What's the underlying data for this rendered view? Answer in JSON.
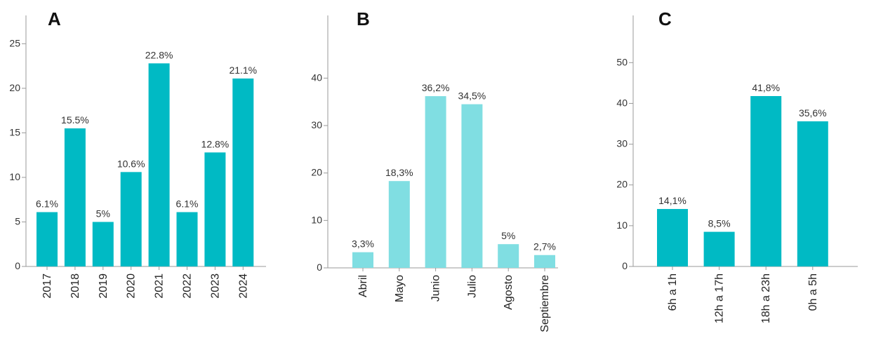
{
  "chart_data": [
    {
      "type": "bar",
      "panel": "A",
      "categories": [
        "2017",
        "2018",
        "2019",
        "2020",
        "2021",
        "2022",
        "2023",
        "2024"
      ],
      "values": [
        6.1,
        15.5,
        5,
        10.6,
        22.8,
        6.1,
        12.8,
        21.1
      ],
      "value_labels": [
        "6.1%",
        "15.5%",
        "5%",
        "10.6%",
        "22.8%",
        "6.1%",
        "12.8%",
        "21.1%"
      ],
      "yticks": [
        0,
        5,
        10,
        15,
        20,
        25
      ],
      "ylim": [
        0,
        27
      ],
      "color": "#00BAC4",
      "grid": false
    },
    {
      "type": "bar",
      "panel": "B",
      "categories": [
        "Abril",
        "Mayo",
        "Junio",
        "Julio",
        "Agosto",
        "Septiembre"
      ],
      "values": [
        3.3,
        18.3,
        36.2,
        34.5,
        5,
        2.7
      ],
      "value_labels": [
        "3,3%",
        "18,3%",
        "36,2%",
        "34,5%",
        "5%",
        "2,7%"
      ],
      "yticks": [
        0,
        10,
        20,
        30,
        40
      ],
      "ylim": [
        0,
        51
      ],
      "color": "#80DEE2",
      "grid": false
    },
    {
      "type": "bar",
      "panel": "C",
      "categories": [
        "6h a 1h",
        "12h a 17h",
        "18h a 23h",
        "0h a 5h"
      ],
      "values": [
        14.1,
        8.5,
        41.8,
        35.6
      ],
      "value_labels": [
        "14,1%",
        "8,5%",
        "41,8%",
        "35,6%"
      ],
      "yticks": [
        0,
        10,
        20,
        30,
        40,
        50
      ],
      "ylim": [
        0,
        59
      ],
      "color": "#00BAC4",
      "grid": false
    }
  ]
}
